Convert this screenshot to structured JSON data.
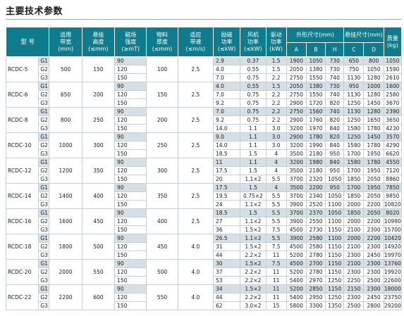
{
  "title": "主要技术参数",
  "headers": {
    "model": "型 号",
    "belt_width": [
      "适用",
      "带宽",
      "(mm)"
    ],
    "hang_height": [
      "悬挂",
      "高度",
      "(≤mm)"
    ],
    "field_strength": [
      "磁场",
      "强度",
      "(≥mT)"
    ],
    "material_thickness": [
      "物料",
      "厚度",
      "(≤mm)"
    ],
    "belt_speed": [
      "适应",
      "带速",
      "(≤m/s)"
    ],
    "excitation_power": [
      "励磁",
      "功率",
      "(≤kW)"
    ],
    "fan_power": [
      "风机",
      "功率",
      "(≤kW)"
    ],
    "drive_power": [
      "驱动",
      "功率",
      "(kW)"
    ],
    "outline_size": "外形尺寸(mm)",
    "hang_size": "悬挂尺寸(mm)",
    "mass": [
      "质量",
      "(kg)"
    ],
    "sub": [
      "A",
      "B",
      "H",
      "C",
      "D"
    ]
  },
  "models": [
    {
      "name": "RCDC-5",
      "belt_width": "500",
      "hang_height": "150",
      "thickness": "100",
      "speed": "2.5",
      "rows": [
        {
          "g": "G1",
          "field": "90",
          "exc": "2.9",
          "fan": "0.37",
          "drive": "1.5",
          "A": "1900",
          "B": "1050",
          "H": "730",
          "C": "650",
          "D": "800",
          "mass": "1050"
        },
        {
          "g": "G2",
          "field": "120",
          "exc": "4.0",
          "fan": "0.55",
          "drive": "1.5",
          "A": "2050",
          "B": "1380",
          "H": "730",
          "C": "750",
          "D": "1050",
          "mass": "1590"
        },
        {
          "g": "G3",
          "field": "150",
          "exc": "7.0",
          "fan": "0.75",
          "drive": "2.2",
          "A": "2750",
          "B": "1550",
          "H": "740",
          "C": "1130",
          "D": "1280",
          "mass": "2610"
        }
      ]
    },
    {
      "name": "RCDC-6",
      "belt_width": "650",
      "hang_height": "200",
      "thickness": "150",
      "speed": "2.5",
      "rows": [
        {
          "g": "G1",
          "field": "90",
          "exc": "4.0",
          "fan": "0.55",
          "drive": "1.5",
          "A": "2050",
          "B": "1380",
          "H": "730",
          "C": "950",
          "D": "1000",
          "mass": "1600"
        },
        {
          "g": "G2",
          "field": "120",
          "exc": "7.0",
          "fan": "0.75",
          "drive": "2.2",
          "A": "2750",
          "B": "1550",
          "H": "740",
          "C": "1130",
          "D": "1280",
          "mass": "2580"
        },
        {
          "g": "G3",
          "field": "150",
          "exc": "9.2",
          "fan": "0.75",
          "drive": "2.2",
          "A": "2900",
          "B": "1720",
          "H": "820",
          "C": "1250",
          "D": "1450",
          "mass": "3670"
        }
      ]
    },
    {
      "name": "RCDC-8",
      "belt_width": "800",
      "hang_height": "250",
      "thickness": "200",
      "speed": "2.5",
      "rows": [
        {
          "g": "G1",
          "field": "90",
          "exc": "7.0",
          "fan": "0.75",
          "drive": "2.2",
          "A": "2750",
          "B": "1560",
          "H": "740",
          "C": "1130",
          "D": "1280",
          "mass": "2390"
        },
        {
          "g": "G2",
          "field": "120",
          "exc": "9.2",
          "fan": "0.75",
          "drive": "2.2",
          "A": "2900",
          "B": "1760",
          "H": "820",
          "C": "1250",
          "D": "1650",
          "mass": "3650"
        },
        {
          "g": "G3",
          "field": "150",
          "exc": "14.0",
          "fan": "1.1",
          "drive": "3.0",
          "A": "3200",
          "B": "1970",
          "H": "840",
          "C": "1580",
          "D": "1780",
          "mass": "4230"
        }
      ]
    },
    {
      "name": "RCDC-10",
      "belt_width": "1000",
      "hang_height": "300",
      "thickness": "250",
      "speed": "2.5",
      "rows": [
        {
          "g": "G1",
          "field": "90",
          "exc": "9.0",
          "fan": "1.1",
          "drive": "3.0",
          "A": "2900",
          "B": "1780",
          "H": "820",
          "C": "1250",
          "D": "1450",
          "mass": "3570"
        },
        {
          "g": "G2",
          "field": "120",
          "exc": "14.0",
          "fan": "1.1",
          "drive": "3.0",
          "A": "3200",
          "B": "1990",
          "H": "840",
          "C": "1580",
          "D": "1780",
          "mass": "4290"
        },
        {
          "g": "G3",
          "field": "150",
          "exc": "18.5",
          "fan": "1.5",
          "drive": "4",
          "A": "3500",
          "B": "2180",
          "H": "950",
          "C": "1700",
          "D": "1950",
          "mass": "6620"
        }
      ]
    },
    {
      "name": "RCDC-12",
      "belt_width": "1200",
      "hang_height": "350",
      "thickness": "300",
      "speed": "2.5",
      "rows": [
        {
          "g": "G1",
          "field": "90",
          "exc": "11",
          "fan": "1.1",
          "drive": "4",
          "A": "3200",
          "B": "1980",
          "H": "840",
          "C": "1580",
          "D": "1780",
          "mass": "4550"
        },
        {
          "g": "G2",
          "field": "120",
          "exc": "17.5",
          "fan": "1.5",
          "drive": "4",
          "A": "3500",
          "B": "2180",
          "H": "950",
          "C": "1700",
          "D": "1950",
          "mass": "7120"
        },
        {
          "g": "G3",
          "field": "150",
          "exc": "20",
          "fan": "1.1×2",
          "drive": "5.5",
          "A": "3700",
          "B": "2320",
          "H": "1050",
          "C": "1850",
          "D": "2050",
          "mass": "8860"
        }
      ]
    },
    {
      "name": "RCDC-14",
      "belt_width": "1400",
      "hang_height": "400",
      "thickness": "350",
      "speed": "2.5",
      "rows": [
        {
          "g": "G1",
          "field": "90",
          "exc": "17.5",
          "fan": "1.5",
          "drive": "4",
          "A": "3500",
          "B": "2200",
          "H": "950",
          "C": "1700",
          "D": "1950",
          "mass": "7850"
        },
        {
          "g": "G2",
          "field": "120",
          "exc": "19.5",
          "fan": "0.75×2",
          "drive": "5.5",
          "A": "3700",
          "B": "2340",
          "H": "1050",
          "C": "1850",
          "D": "2050",
          "mass": "9850"
        },
        {
          "g": "G3",
          "field": "150",
          "exc": "24",
          "fan": "1.1×2",
          "drive": "5.5",
          "A": "3900",
          "B": "2520",
          "H": "1100",
          "C": "2000",
          "D": "2200",
          "mass": "10820"
        }
      ]
    },
    {
      "name": "RCDC-16",
      "belt_width": "1600",
      "hang_height": "450",
      "thickness": "400",
      "speed": "2.5",
      "rows": [
        {
          "g": "G1",
          "field": "90",
          "exc": "18.5",
          "fan": "1.5",
          "drive": "5.5",
          "A": "3700",
          "B": "2370",
          "H": "1050",
          "C": "1850",
          "D": "2050",
          "mass": "8020"
        },
        {
          "g": "G2",
          "field": "120",
          "exc": "27",
          "fan": "1.1×2",
          "drive": "5.5",
          "A": "3900",
          "B": "2550",
          "H": "1100",
          "C": "2000",
          "D": "2200",
          "mass": "10990"
        },
        {
          "g": "G3",
          "field": "150",
          "exc": "36",
          "fan": "1.5×2",
          "drive": "7.5",
          "A": "4500",
          "B": "2730",
          "H": "1150",
          "C": "2100",
          "D": "2300",
          "mass": "15700"
        }
      ]
    },
    {
      "name": "RCDC-18",
      "belt_width": "1800",
      "hang_height": "500",
      "thickness": "450",
      "speed": "4.0",
      "rows": [
        {
          "g": "G1",
          "field": "90",
          "exc": "26.5",
          "fan": "1.1×2",
          "drive": "5.5",
          "A": "3900",
          "B": "2580",
          "H": "1100",
          "C": "2000",
          "D": "2200",
          "mass": "10420"
        },
        {
          "g": "G2",
          "field": "120",
          "exc": "31",
          "fan": "1.5×2",
          "drive": "7.5",
          "A": "4500",
          "B": "2580",
          "H": "1150",
          "C": "2100",
          "D": "2300",
          "mass": "14920"
        },
        {
          "g": "G3",
          "field": "150",
          "exc": "44",
          "fan": "2.2×2",
          "drive": "11",
          "A": "5200",
          "B": "2780",
          "H": "1150",
          "C": "2300",
          "D": "2450",
          "mass": "19970"
        }
      ]
    },
    {
      "name": "RCDC-20",
      "belt_width": "2000",
      "hang_height": "550",
      "thickness": "500",
      "speed": "4.0",
      "rows": [
        {
          "g": "G1",
          "field": "90",
          "exc": "30",
          "fan": "1.5×2",
          "drive": "7.5",
          "A": "4500",
          "B": "2700",
          "H": "1150",
          "C": "2100",
          "D": "2300",
          "mass": "13760"
        },
        {
          "g": "G2",
          "field": "120",
          "exc": "37",
          "fan": "2.2×2",
          "drive": "11",
          "A": "5200",
          "B": "2780",
          "H": "1150",
          "C": "2300",
          "D": "2300",
          "mass": "19920"
        },
        {
          "g": "G3",
          "field": "150",
          "exc": "53",
          "fan": "2.2×2",
          "drive": "11",
          "A": "5400",
          "B": "2970",
          "H": "1250",
          "C": "2250",
          "D": "2500",
          "mass": "22600"
        }
      ]
    },
    {
      "name": "RCDC-22",
      "belt_width": "2200",
      "hang_height": "600",
      "thickness": "550",
      "speed": "4.0",
      "rows": [
        {
          "g": "G1",
          "field": "90",
          "exc": "34",
          "fan": "1.5×2",
          "drive": "11",
          "A": "5200",
          "B": "2850",
          "H": "1150",
          "C": "2150",
          "D": "2300",
          "mass": "18000"
        },
        {
          "g": "G2",
          "field": "120",
          "exc": "44",
          "fan": "2.2×2",
          "drive": "11",
          "A": "5400",
          "B": "2950",
          "H": "1250",
          "C": "2300",
          "D": "2450",
          "mass": "23750"
        },
        {
          "g": "G3",
          "field": "150",
          "exc": "62",
          "fan": "3.0×2",
          "drive": "15",
          "A": "5800",
          "B": "3300",
          "H": "1350",
          "C": "2500",
          "D": "2800",
          "mass": "29200"
        }
      ]
    }
  ],
  "colors": {
    "header_bg": "#0e7c8c",
    "shade_row": "#d6dfe3",
    "text": "#1a1a1a"
  }
}
